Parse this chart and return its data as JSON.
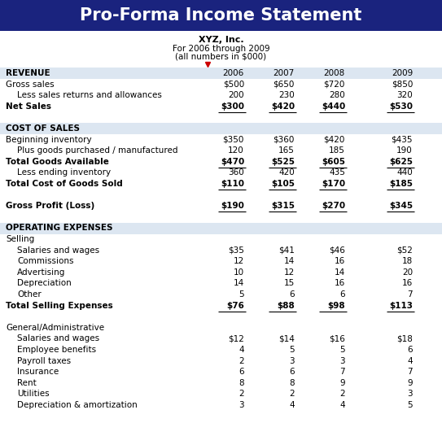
{
  "title": "Pro-Forma Income Statement",
  "subtitle1": "XYZ, Inc.",
  "subtitle2": "For 2006 through 2009",
  "subtitle3": "(all numbers in $000)",
  "title_bg": "#1a237e",
  "title_fg": "#ffffff",
  "section_bg": "#dce6f1",
  "years": [
    "2006",
    "2007",
    "2008",
    "2009"
  ],
  "rows": [
    {
      "label": "REVENUE",
      "values": [
        "",
        "",
        "",
        ""
      ],
      "style": "section_header"
    },
    {
      "label": "Gross sales",
      "values": [
        "$500",
        "$650",
        "$720",
        "$850"
      ],
      "style": "normal",
      "indent": 0
    },
    {
      "label": "Less sales returns and allowances",
      "values": [
        "200",
        "230",
        "280",
        "320"
      ],
      "style": "normal",
      "indent": 1
    },
    {
      "label": "Net Sales",
      "values": [
        "$300",
        "$420",
        "$440",
        "$530"
      ],
      "style": "bold_line",
      "indent": 0
    },
    {
      "label": "",
      "values": [
        "",
        "",
        "",
        ""
      ],
      "style": "spacer"
    },
    {
      "label": "COST OF SALES",
      "values": [
        "",
        "",
        "",
        ""
      ],
      "style": "section_header"
    },
    {
      "label": "Beginning inventory",
      "values": [
        "$350",
        "$360",
        "$420",
        "$435"
      ],
      "style": "normal",
      "indent": 0
    },
    {
      "label": "Plus goods purchased / manufactured",
      "values": [
        "120",
        "165",
        "185",
        "190"
      ],
      "style": "normal",
      "indent": 1
    },
    {
      "label": "Total Goods Available",
      "values": [
        "$470",
        "$525",
        "$605",
        "$625"
      ],
      "style": "bold_line",
      "indent": 0
    },
    {
      "label": "Less ending inventory",
      "values": [
        "360",
        "420",
        "435",
        "440"
      ],
      "style": "normal",
      "indent": 1
    },
    {
      "label": "Total Cost of Goods Sold",
      "values": [
        "$110",
        "$105",
        "$170",
        "$185"
      ],
      "style": "bold_line",
      "indent": 0
    },
    {
      "label": "",
      "values": [
        "",
        "",
        "",
        ""
      ],
      "style": "spacer"
    },
    {
      "label": "Gross Profit (Loss)",
      "values": [
        "$190",
        "$315",
        "$270",
        "$345"
      ],
      "style": "bold_line",
      "indent": 0
    },
    {
      "label": "",
      "values": [
        "",
        "",
        "",
        ""
      ],
      "style": "spacer"
    },
    {
      "label": "OPERATING EXPENSES",
      "values": [
        "",
        "",
        "",
        ""
      ],
      "style": "section_header"
    },
    {
      "label": "Selling",
      "values": [
        "",
        "",
        "",
        ""
      ],
      "style": "plain",
      "indent": 0
    },
    {
      "label": "Salaries and wages",
      "values": [
        "$35",
        "$41",
        "$46",
        "$52"
      ],
      "style": "normal",
      "indent": 1
    },
    {
      "label": "Commissions",
      "values": [
        "12",
        "14",
        "16",
        "18"
      ],
      "style": "normal",
      "indent": 1
    },
    {
      "label": "Advertising",
      "values": [
        "10",
        "12",
        "14",
        "20"
      ],
      "style": "normal",
      "indent": 1
    },
    {
      "label": "Depreciation",
      "values": [
        "14",
        "15",
        "16",
        "16"
      ],
      "style": "normal",
      "indent": 1
    },
    {
      "label": "Other",
      "values": [
        "5",
        "6",
        "6",
        "7"
      ],
      "style": "normal",
      "indent": 1
    },
    {
      "label": "Total Selling Expenses",
      "values": [
        "$76",
        "$88",
        "$98",
        "$113"
      ],
      "style": "bold_line",
      "indent": 0
    },
    {
      "label": "",
      "values": [
        "",
        "",
        "",
        ""
      ],
      "style": "spacer"
    },
    {
      "label": "General/Administrative",
      "values": [
        "",
        "",
        "",
        ""
      ],
      "style": "plain",
      "indent": 0
    },
    {
      "label": "Salaries and wages",
      "values": [
        "$12",
        "$14",
        "$16",
        "$18"
      ],
      "style": "normal",
      "indent": 1
    },
    {
      "label": "Employee benefits",
      "values": [
        "4",
        "5",
        "5",
        "6"
      ],
      "style": "normal",
      "indent": 1
    },
    {
      "label": "Payroll taxes",
      "values": [
        "2",
        "3",
        "3",
        "4"
      ],
      "style": "normal",
      "indent": 1
    },
    {
      "label": "Insurance",
      "values": [
        "6",
        "6",
        "7",
        "7"
      ],
      "style": "normal",
      "indent": 1
    },
    {
      "label": "Rent",
      "values": [
        "8",
        "8",
        "9",
        "9"
      ],
      "style": "normal",
      "indent": 1
    },
    {
      "label": "Utilities",
      "values": [
        "2",
        "2",
        "2",
        "3"
      ],
      "style": "normal",
      "indent": 1
    },
    {
      "label": "Depreciation & amortization",
      "values": [
        "3",
        "4",
        "4",
        "5"
      ],
      "style": "normal",
      "indent": 1
    }
  ]
}
